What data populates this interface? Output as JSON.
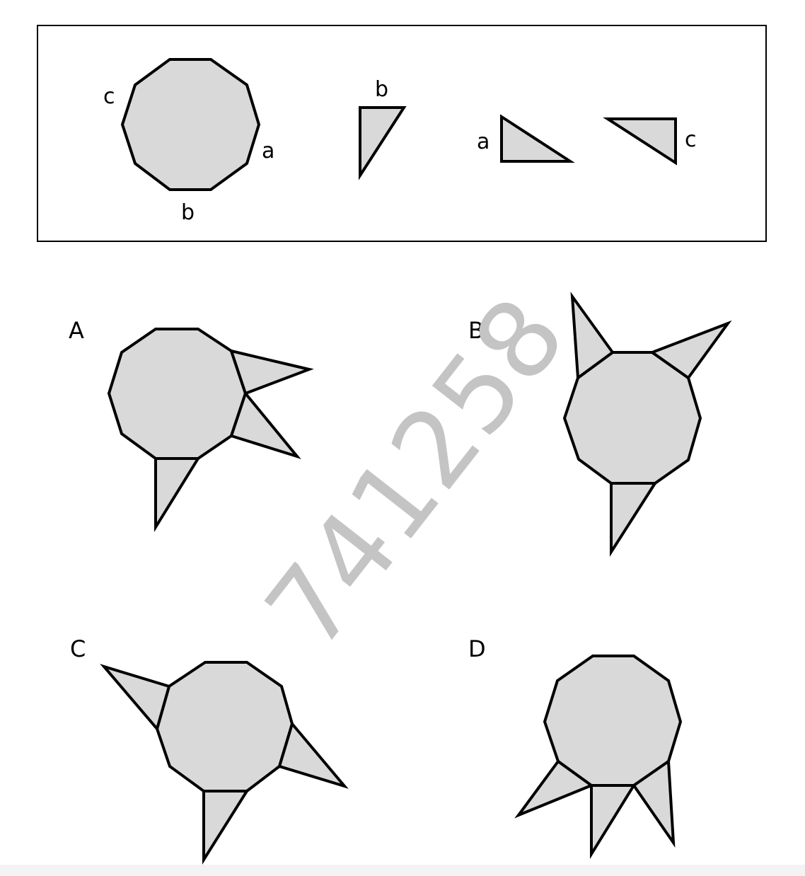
{
  "given": {
    "decagon_labels": {
      "c": "c",
      "a": "a",
      "b": "b"
    },
    "triangle_labels": {
      "b": "b",
      "a": "a",
      "c": "c"
    }
  },
  "options": [
    {
      "letter": "A"
    },
    {
      "letter": "B"
    },
    {
      "letter": "C"
    },
    {
      "letter": "D"
    }
  ],
  "watermark": "741258",
  "colors": {
    "fill": "#d9d9d9",
    "stroke": "#000000",
    "watermark": "#c4c4c4"
  }
}
